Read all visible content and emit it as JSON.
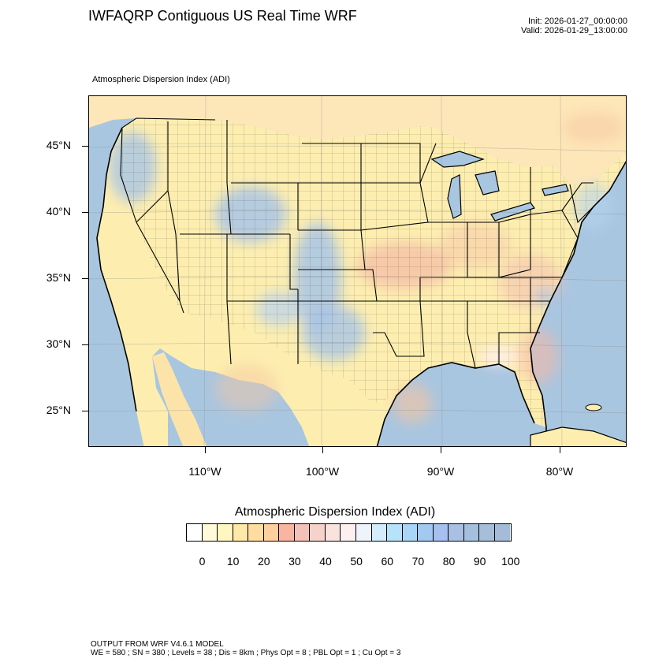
{
  "header": {
    "title": "IWFAQRP Contiguous US Real Time WRF",
    "init": "Init: 2026-01-27_00:00:00",
    "valid": "Valid: 2026-01-29_13:00:00"
  },
  "map": {
    "subtitle": "Atmospheric Dispersion Index   (ADI)",
    "lat_labels": [
      "45°N",
      "40°N",
      "35°N",
      "30°N",
      "25°N"
    ],
    "lon_labels": [
      "110°W",
      "100°W",
      "90°W",
      "80°W"
    ],
    "colors": {
      "ocean": "#a9c6e0",
      "land_low": "#fdeeb0",
      "land_mid": "#f7c9a8",
      "land_high": "#a8c4e6",
      "borders": "#000000"
    }
  },
  "colorbar": {
    "title": "Atmospheric Dispersion Index  (ADI)",
    "tick_labels": [
      "0",
      "10",
      "20",
      "30",
      "40",
      "50",
      "60",
      "70",
      "80",
      "90",
      "100"
    ],
    "colors": [
      "#ffffff",
      "#fffbd9",
      "#fff6c2",
      "#ffe9a8",
      "#ffdca0",
      "#ffcfa0",
      "#f8b5a0",
      "#f4c1b8",
      "#f5d2cb",
      "#f9e3de",
      "#fdf0f0",
      "#eef4fc",
      "#d4ecfb",
      "#b6e2fa",
      "#a9d6f6",
      "#a3c9f0",
      "#a6c0ef",
      "#a9c0e3",
      "#a5c0df",
      "#a7bed9",
      "#a4bcd7"
    ]
  },
  "footer": {
    "line1": "OUTPUT FROM WRF V4.6.1 MODEL",
    "line2": "WE = 580 ; SN = 380 ; Levels = 38 ; Dis = 8km ; Phys Opt = 8 ; PBL Opt = 1 ; Cu Opt = 3"
  }
}
